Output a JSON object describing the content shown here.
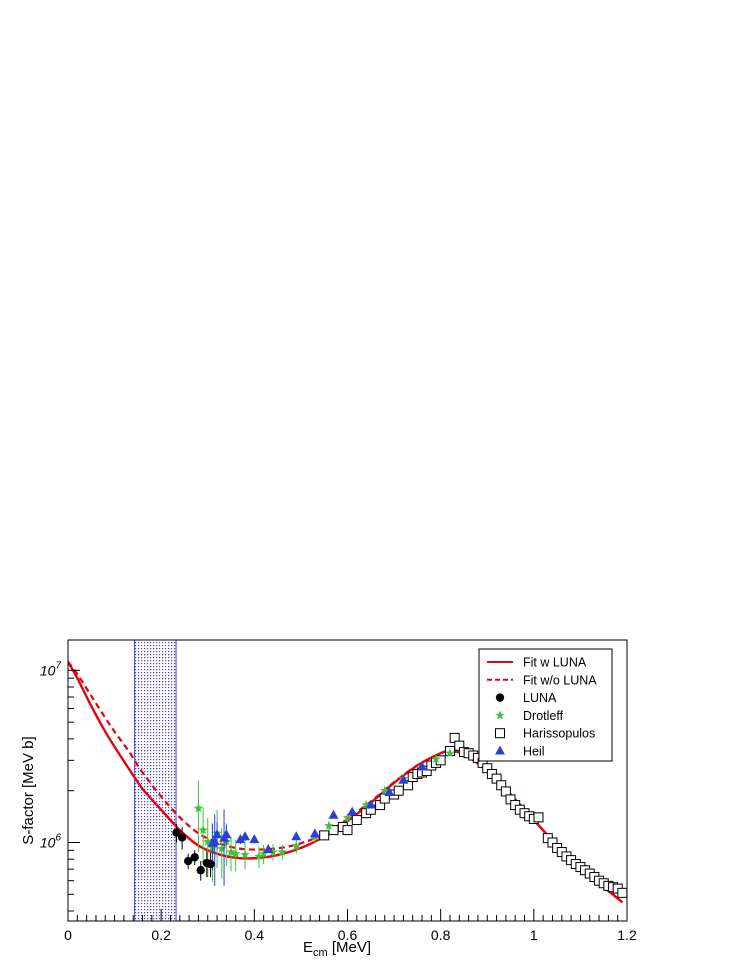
{
  "chart_data": {
    "type": "scatter",
    "title": "",
    "xlabel": "E",
    "xlabel_sub": "cm",
    "xlabel_unit": "[MeV]",
    "ylabel": "S-factor [MeV b]",
    "xlim": [
      0,
      1.2
    ],
    "ylim": [
      350000,
      15000000
    ],
    "yscale": "log",
    "x_ticks": [
      "0",
      "0.2",
      "0.4",
      "0.6",
      "0.8",
      "1",
      "1.2"
    ],
    "y_ticks": [
      {
        "base": "10",
        "exp": "6"
      },
      {
        "base": "10",
        "exp": "7"
      }
    ],
    "legend_position": "top-right",
    "shaded_region": {
      "x": [
        0.143,
        0.232
      ],
      "color": "#2222cc"
    },
    "colors": {
      "fit": "#e8000b",
      "luna": "#000000",
      "drotleff": "#3cc43c",
      "harissopulos": "#000000",
      "heil": "#2a3fd6"
    },
    "legend": {
      "fit_w": "Fit w LUNA",
      "fit_wo": "Fit w/o LUNA",
      "luna": "LUNA",
      "drotleff": "Drotleff",
      "harissopulos": "Harissopulos",
      "heil": "Heil"
    },
    "series": [
      {
        "name": "Fit w LUNA",
        "style": "solid-line",
        "x": [
          0.0,
          0.02,
          0.05,
          0.08,
          0.1,
          0.13,
          0.16,
          0.2,
          0.24,
          0.28,
          0.32,
          0.36,
          0.4,
          0.45,
          0.5,
          0.55,
          0.6,
          0.65,
          0.7,
          0.75,
          0.8,
          0.82,
          0.85,
          0.9,
          0.95,
          1.0,
          1.05,
          1.1,
          1.15,
          1.19
        ],
        "y": [
          11200000,
          9000000,
          6200000,
          4400000,
          3600000,
          2700000,
          2050000,
          1550000,
          1180000,
          960000,
          860000,
          815000,
          810000,
          845000,
          930000,
          1080000,
          1330000,
          1700000,
          2220000,
          2800000,
          3300000,
          3380000,
          3250000,
          2600000,
          1900000,
          1350000,
          960000,
          700000,
          550000,
          450000
        ]
      },
      {
        "name": "Fit w/o LUNA",
        "style": "dashed-line",
        "x": [
          0.0,
          0.02,
          0.05,
          0.08,
          0.1,
          0.13,
          0.16,
          0.2,
          0.24,
          0.28,
          0.32,
          0.36,
          0.4,
          0.45,
          0.5,
          0.55,
          0.6,
          0.65,
          0.7,
          0.75,
          0.8,
          0.82,
          0.85,
          0.9,
          0.95,
          1.0,
          1.05,
          1.1,
          1.15,
          1.19
        ],
        "y": [
          11200000,
          9500000,
          7100000,
          5300000,
          4400000,
          3400000,
          2550000,
          1850000,
          1400000,
          1130000,
          1000000,
          930000,
          910000,
          925000,
          990000,
          1120000,
          1370000,
          1730000,
          2240000,
          2810000,
          3300000,
          3380000,
          3250000,
          2600000,
          1900000,
          1350000,
          960000,
          700000,
          550000,
          450000
        ]
      },
      {
        "name": "LUNA",
        "marker": "circle",
        "x": [
          0.233,
          0.245,
          0.258,
          0.272,
          0.285,
          0.298,
          0.306
        ],
        "y": [
          1140000,
          1070000,
          780000,
          820000,
          690000,
          760000,
          750000
        ],
        "err": [
          140000,
          160000,
          80000,
          80000,
          90000,
          130000,
          120000
        ]
      },
      {
        "name": "Drotleff",
        "marker": "star",
        "x": [
          0.28,
          0.29,
          0.3,
          0.31,
          0.32,
          0.33,
          0.34,
          0.35,
          0.36,
          0.38,
          0.41,
          0.42,
          0.44,
          0.46,
          0.49,
          0.53,
          0.56,
          0.6,
          0.64,
          0.68,
          0.72,
          0.76,
          0.79,
          0.82
        ],
        "y": [
          1580000,
          1180000,
          1010000,
          930000,
          1130000,
          920000,
          1010000,
          880000,
          860000,
          850000,
          830000,
          860000,
          880000,
          880000,
          950000,
          1080000,
          1250000,
          1390000,
          1650000,
          2000000,
          2350000,
          2750000,
          3050000,
          3300000
        ],
        "err": [
          700000,
          420000,
          380000,
          340000,
          420000,
          300000,
          280000,
          200000,
          180000,
          150000,
          120000,
          110000,
          100000,
          90000,
          90000,
          80000,
          80000,
          80000,
          80000,
          80000,
          90000,
          90000,
          100000,
          100000
        ]
      },
      {
        "name": "Harissopulos",
        "marker": "open-square",
        "x": [
          0.55,
          0.57,
          0.59,
          0.6,
          0.62,
          0.64,
          0.65,
          0.67,
          0.68,
          0.7,
          0.71,
          0.73,
          0.74,
          0.75,
          0.76,
          0.77,
          0.78,
          0.79,
          0.8,
          0.82,
          0.83,
          0.84,
          0.85,
          0.86,
          0.87,
          0.88,
          0.89,
          0.9,
          0.91,
          0.92,
          0.93,
          0.94,
          0.95,
          0.96,
          0.97,
          0.98,
          0.99,
          1.0,
          1.01,
          1.03,
          1.04,
          1.05,
          1.06,
          1.07,
          1.08,
          1.09,
          1.1,
          1.11,
          1.12,
          1.13,
          1.14,
          1.15,
          1.16,
          1.17,
          1.18,
          1.19
        ],
        "y": [
          1100000,
          1180000,
          1230000,
          1180000,
          1350000,
          1480000,
          1550000,
          1650000,
          1800000,
          1900000,
          2000000,
          2150000,
          2400000,
          2500000,
          2550000,
          2600000,
          2800000,
          2900000,
          3000000,
          3400000,
          4050000,
          3650000,
          3350000,
          3300000,
          3200000,
          3100000,
          2900000,
          2700000,
          2500000,
          2350000,
          2150000,
          1980000,
          1780000,
          1650000,
          1550000,
          1480000,
          1420000,
          1370000,
          1400000,
          1060000,
          1000000,
          930000,
          880000,
          830000,
          790000,
          750000,
          720000,
          690000,
          660000,
          630000,
          600000,
          580000,
          560000,
          550000,
          540000,
          510000
        ]
      },
      {
        "name": "Heil",
        "marker": "triangle",
        "x": [
          0.31,
          0.315,
          0.32,
          0.335,
          0.34,
          0.37,
          0.38,
          0.4,
          0.43,
          0.49,
          0.53,
          0.57,
          0.61,
          0.65,
          0.69,
          0.72,
          0.76
        ],
        "y": [
          990000,
          1010000,
          1110000,
          1060000,
          1110000,
          1040000,
          1080000,
          1040000,
          910000,
          1080000,
          1120000,
          1440000,
          1500000,
          1650000,
          1950000,
          2300000,
          2750000
        ],
        "err": [
          300000,
          450000,
          200000,
          500000,
          150000,
          60000,
          60000,
          50000,
          40000,
          40000,
          40000,
          40000,
          40000,
          40000,
          40000,
          40000,
          40000
        ]
      }
    ]
  }
}
